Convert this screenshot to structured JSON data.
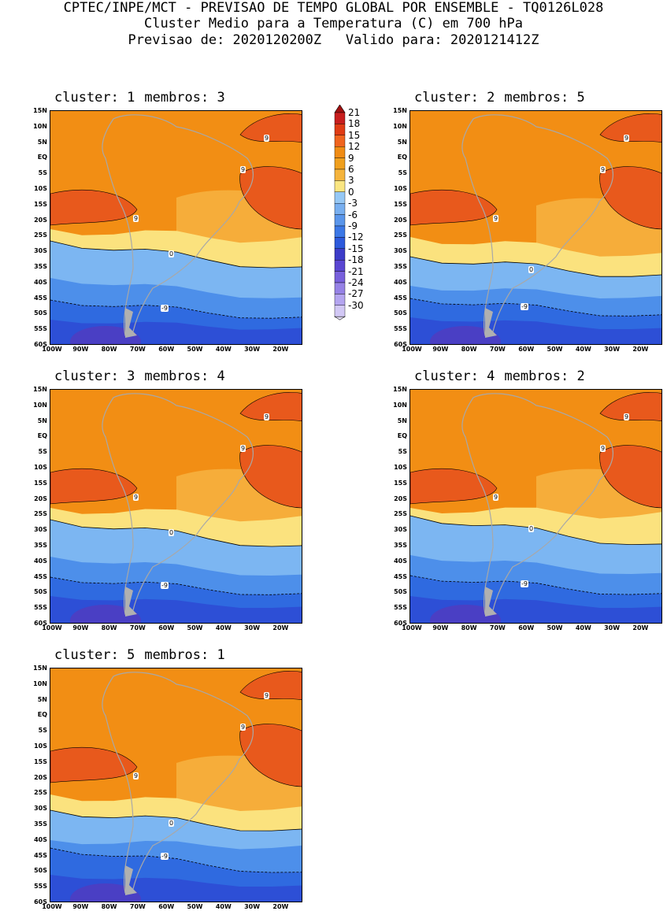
{
  "header": {
    "line1": "CPTEC/INPE/MCT - PREVISAO DE TEMPO GLOBAL POR ENSEMBLE - TQ0126L028",
    "line2": "Cluster Medio para a Temperatura (C) em 700 hPa",
    "line3": "Previsao de: 2020120200Z   Valido para: 2020121412Z"
  },
  "panels": [
    {
      "cluster_label": "cluster: 1",
      "members_label": "membros: 3"
    },
    {
      "cluster_label": "cluster: 2",
      "members_label": "membros: 5"
    },
    {
      "cluster_label": "cluster: 3",
      "members_label": "membros: 4"
    },
    {
      "cluster_label": "cluster: 4",
      "members_label": "membros: 2"
    },
    {
      "cluster_label": "cluster: 5",
      "members_label": "membros: 1"
    }
  ],
  "axes": {
    "lat_labels": [
      "15N",
      "10N",
      "5N",
      "EQ",
      "5S",
      "10S",
      "15S",
      "20S",
      "25S",
      "30S",
      "35S",
      "40S",
      "45S",
      "50S",
      "55S",
      "60S"
    ],
    "lon_labels": [
      "100W",
      "90W",
      "80W",
      "70W",
      "60W",
      "50W",
      "40W",
      "30W",
      "20W"
    ]
  },
  "colorbar": {
    "labels": [
      "21",
      "18",
      "15",
      "12",
      "9",
      "6",
      "3",
      "0",
      "-3",
      "-6",
      "-9",
      "-12",
      "-15",
      "-18",
      "-21",
      "-24",
      "-27",
      "-30"
    ],
    "colors": [
      "#a01010",
      "#c81e1e",
      "#e03c14",
      "#f0641e",
      "#f08c14",
      "#f0a01e",
      "#f5b43c",
      "#fae682",
      "#96c8f5",
      "#78aff0",
      "#5a96eb",
      "#3c78e6",
      "#2d5adc",
      "#3c3cc8",
      "#5a46d2",
      "#7860dc",
      "#9682e6",
      "#b4a5f0",
      "#d2c8f5"
    ]
  },
  "contour_labels": {
    "nine": "9",
    "zero": "0",
    "neg_nine": "-9"
  }
}
